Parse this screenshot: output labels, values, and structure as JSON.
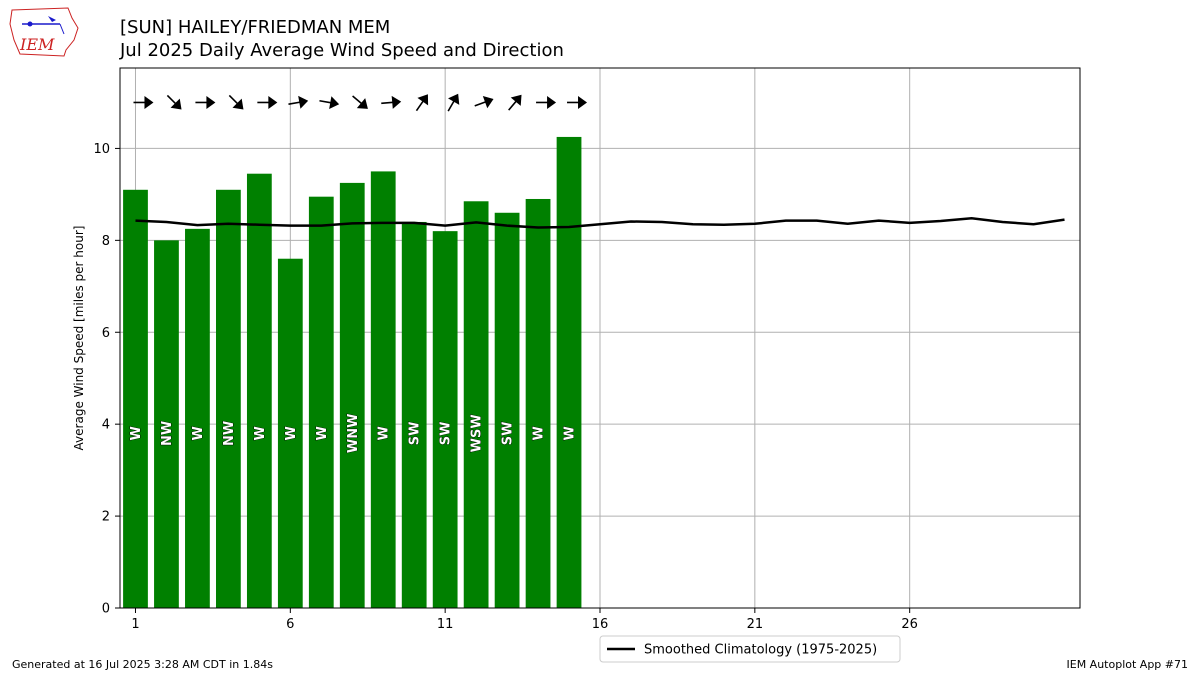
{
  "header": {
    "station": "[SUN] HAILEY/FRIEDMAN MEM",
    "subtitle": "Jul 2025 Daily Average Wind Speed and Direction",
    "logo_text": "IEM"
  },
  "footer": {
    "left": "Generated at 16 Jul 2025 3:28 AM CDT in 1.84s",
    "right": "IEM Autoplot App #71"
  },
  "colors": {
    "bar": "#008000",
    "line": "#000000",
    "grid": "#b0b0b0",
    "logo_red": "#cc2222",
    "logo_blue": "#1a1acc"
  },
  "chart_data": {
    "type": "bar",
    "ylabel": "Average Wind Speed [miles per hour]",
    "xlabel": "",
    "xlim": [
      0.5,
      31.5
    ],
    "ylim": [
      0,
      11.75
    ],
    "xticks": [
      1,
      6,
      11,
      16,
      21,
      26
    ],
    "yticks": [
      0,
      2,
      4,
      6,
      8,
      10
    ],
    "grid": true,
    "legend_position": "bottom-center-outside",
    "bars": {
      "days": [
        1,
        2,
        3,
        4,
        5,
        6,
        7,
        8,
        9,
        10,
        11,
        12,
        13,
        14,
        15
      ],
      "values": [
        9.1,
        8.0,
        8.25,
        9.1,
        9.45,
        7.6,
        8.95,
        9.25,
        9.5,
        8.4,
        8.2,
        8.85,
        8.6,
        8.9,
        10.25
      ],
      "direction_labels": [
        "W",
        "NW",
        "W",
        "NW",
        "W",
        "W",
        "W",
        "WNW",
        "W",
        "SW",
        "SW",
        "WSW",
        "SW",
        "W",
        "W"
      ],
      "arrow_bearing_deg": [
        90,
        135,
        90,
        135,
        90,
        80,
        100,
        130,
        85,
        35,
        30,
        70,
        40,
        90,
        90
      ]
    },
    "series": [
      {
        "name": "Smoothed Climatology (1975-2025)",
        "x": [
          1,
          2,
          3,
          4,
          5,
          6,
          7,
          8,
          9,
          10,
          11,
          12,
          13,
          14,
          15,
          16,
          17,
          18,
          19,
          20,
          21,
          22,
          23,
          24,
          25,
          26,
          27,
          28,
          29,
          30,
          31
        ],
        "values": [
          8.43,
          8.4,
          8.33,
          8.36,
          8.34,
          8.32,
          8.32,
          8.37,
          8.38,
          8.38,
          8.32,
          8.39,
          8.32,
          8.28,
          8.29,
          8.35,
          8.41,
          8.4,
          8.35,
          8.34,
          8.36,
          8.43,
          8.43,
          8.36,
          8.43,
          8.38,
          8.42,
          8.48,
          8.4,
          8.35,
          8.45
        ]
      }
    ]
  }
}
